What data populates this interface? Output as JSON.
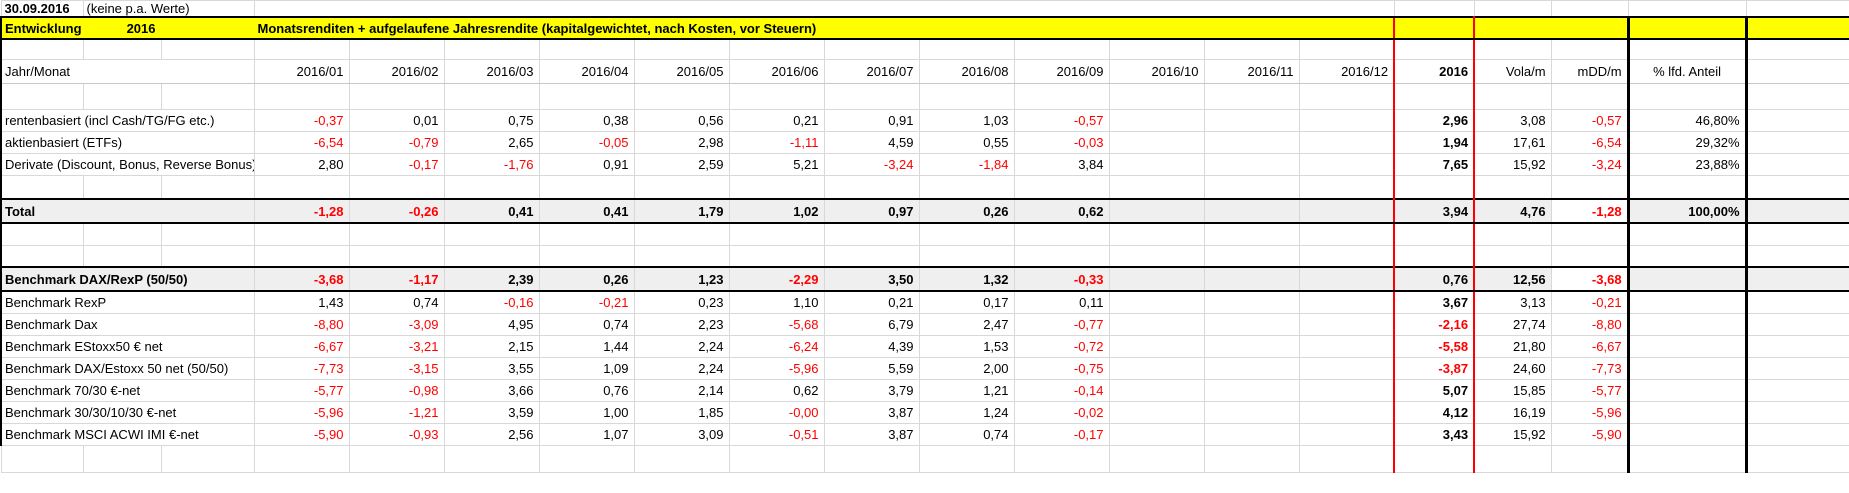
{
  "meta": {
    "date": "30.09.2016",
    "note": "(keine p.a. Werte)"
  },
  "title_row": {
    "left": "Entwicklung",
    "year": "2016",
    "main": "Monatsrenditen + aufgelaufene Jahresrendite (kapitalgewichtet, nach Kosten, vor Steuern)"
  },
  "columns": {
    "row_label": "Jahr/Monat",
    "months": [
      "2016/01",
      "2016/02",
      "2016/03",
      "2016/04",
      "2016/05",
      "2016/06",
      "2016/07",
      "2016/08",
      "2016/09",
      "2016/10",
      "2016/11",
      "2016/12"
    ],
    "ytd": "2016",
    "vola": "Vola/m",
    "mdd": "mDD/m",
    "pct": "% lfd. Anteil"
  },
  "rows": [
    {
      "label": "rentenbasiert (incl Cash/TG/FG etc.)",
      "style": "normal",
      "months": [
        "-0,37",
        "0,01",
        "0,75",
        "0,38",
        "0,56",
        "0,21",
        "0,91",
        "1,03",
        "-0,57",
        "",
        "",
        ""
      ],
      "ytd": "2,96",
      "vola": "3,08",
      "mdd": "-0,57",
      "pct": "46,80%"
    },
    {
      "label": "aktienbasiert (ETFs)",
      "style": "normal",
      "months": [
        "-6,54",
        "-0,79",
        "2,65",
        "-0,05",
        "2,98",
        "-1,11",
        "4,59",
        "0,55",
        "-0,03",
        "",
        "",
        ""
      ],
      "ytd": "1,94",
      "vola": "17,61",
      "mdd": "-6,54",
      "pct": "29,32%"
    },
    {
      "label": "Derivate (Discount, Bonus, Reverse Bonus)",
      "style": "normal",
      "months": [
        "2,80",
        "-0,17",
        "-1,76",
        "0,91",
        "2,59",
        "5,21",
        "-3,24",
        "-1,84",
        "3,84",
        "",
        "",
        ""
      ],
      "ytd": "7,65",
      "vola": "15,92",
      "mdd": "-3,24",
      "pct": "23,88%"
    },
    {
      "label": "Total",
      "style": "band",
      "months": [
        "-1,28",
        "-0,26",
        "0,41",
        "0,41",
        "1,79",
        "1,02",
        "0,97",
        "0,26",
        "0,62",
        "",
        "",
        ""
      ],
      "ytd": "3,94",
      "vola": "4,76",
      "mdd": "-1,28",
      "pct": "100,00%"
    },
    {
      "label": "Benchmark DAX/RexP (50/50)",
      "style": "band",
      "months": [
        "-3,68",
        "-1,17",
        "2,39",
        "0,26",
        "1,23",
        "-2,29",
        "3,50",
        "1,32",
        "-0,33",
        "",
        "",
        ""
      ],
      "ytd": "0,76",
      "vola": "12,56",
      "mdd": "-3,68",
      "pct": ""
    },
    {
      "label": "Benchmark RexP",
      "style": "normal",
      "months": [
        "1,43",
        "0,74",
        "-0,16",
        "-0,21",
        "0,23",
        "1,10",
        "0,21",
        "0,17",
        "0,11",
        "",
        "",
        ""
      ],
      "ytd": "3,67",
      "vola": "3,13",
      "mdd": "-0,21",
      "pct": ""
    },
    {
      "label": "Benchmark Dax",
      "style": "normal",
      "months": [
        "-8,80",
        "-3,09",
        "4,95",
        "0,74",
        "2,23",
        "-5,68",
        "6,79",
        "2,47",
        "-0,77",
        "",
        "",
        ""
      ],
      "ytd": "-2,16",
      "vola": "27,74",
      "mdd": "-8,80",
      "pct": ""
    },
    {
      "label": "Benchmark EStoxx50 € net",
      "style": "normal",
      "months": [
        "-6,67",
        "-3,21",
        "2,15",
        "1,44",
        "2,24",
        "-6,24",
        "4,39",
        "1,53",
        "-0,72",
        "",
        "",
        ""
      ],
      "ytd": "-5,58",
      "vola": "21,80",
      "mdd": "-6,67",
      "pct": ""
    },
    {
      "label": "Benchmark DAX/Estoxx 50 net (50/50)",
      "style": "normal",
      "months": [
        "-7,73",
        "-3,15",
        "3,55",
        "1,09",
        "2,24",
        "-5,96",
        "5,59",
        "2,00",
        "-0,75",
        "",
        "",
        ""
      ],
      "ytd": "-3,87",
      "vola": "24,60",
      "mdd": "-7,73",
      "pct": ""
    },
    {
      "label": "Benchmark 70/30 €-net",
      "style": "normal",
      "months": [
        "-5,77",
        "-0,98",
        "3,66",
        "0,76",
        "2,14",
        "0,62",
        "3,79",
        "1,21",
        "-0,14",
        "",
        "",
        ""
      ],
      "ytd": "5,07",
      "vola": "15,85",
      "mdd": "-5,77",
      "pct": ""
    },
    {
      "label": "Benchmark 30/30/10/30 €-net",
      "style": "normal",
      "months": [
        "-5,96",
        "-1,21",
        "3,59",
        "1,00",
        "1,85",
        "-0,00",
        "3,87",
        "1,24",
        "-0,02",
        "",
        "",
        ""
      ],
      "ytd": "4,12",
      "vola": "16,19",
      "mdd": "-5,96",
      "pct": ""
    },
    {
      "label": "Benchmark MSCI ACWI IMI €-net",
      "style": "normal",
      "months": [
        "-5,90",
        "-0,93",
        "2,56",
        "1,07",
        "3,09",
        "-0,51",
        "3,87",
        "0,74",
        "-0,17",
        "",
        "",
        ""
      ],
      "ytd": "3,43",
      "vola": "15,92",
      "mdd": "-5,90",
      "pct": ""
    }
  ],
  "colors": {
    "highlight_yellow": "#ffff00",
    "negative_red": "#ff0000",
    "band_gray": "#efefef",
    "red_box": "#ff0000",
    "black_box": "#000000"
  }
}
